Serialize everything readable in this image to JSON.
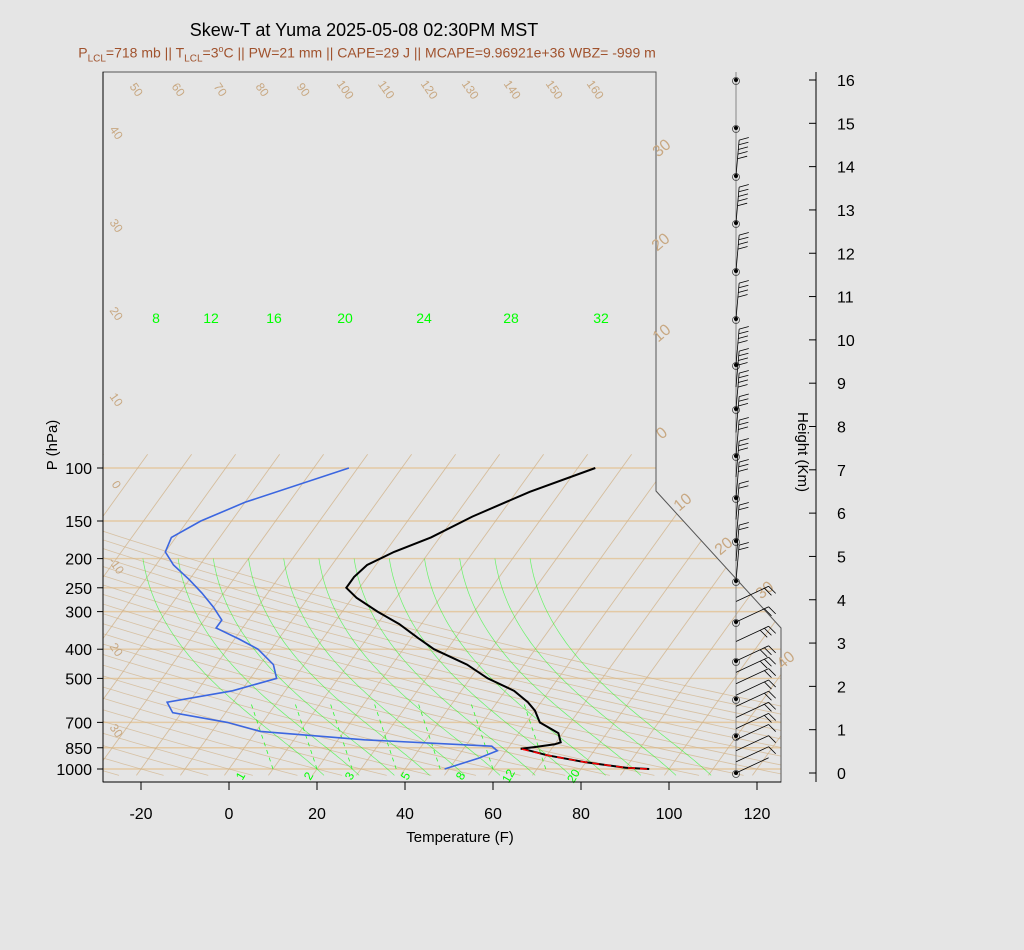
{
  "chart_data": {
    "type": "line",
    "title": "Skew-T at Yuma 2025-05-08 02:30PM MST",
    "subtitle": {
      "p_lcl_label": "P",
      "p_lcl_sub": "LCL",
      "p_lcl_value": "=718 mb || T",
      "t_lcl_sub": "LCL",
      "t_lcl_value": "=3",
      "t_lcl_unit": "o",
      "rest": "C || PW=21 mm || CAPE=29 J || MCAPE=9.96921e+36 WBZ= -999 m"
    },
    "xlabel": "Temperature (F)",
    "ylabel": "P (hPa)",
    "y2label": "Height (Km)",
    "x_ticks": [
      "-20",
      "0",
      "20",
      "40",
      "60",
      "80",
      "100",
      "120"
    ],
    "p_ticks": [
      "100",
      "150",
      "200",
      "250",
      "300",
      "400",
      "500",
      "700",
      "850",
      "1000"
    ],
    "height_ticks": [
      "0",
      "1",
      "2",
      "3",
      "4",
      "5",
      "6",
      "7",
      "8",
      "9",
      "10",
      "11",
      "12",
      "13",
      "14",
      "15",
      "16"
    ],
    "mixing_ratio_labels": [
      "8",
      "12",
      "16",
      "20",
      "24",
      "28",
      "32"
    ],
    "bottom_mixing_labels": [
      "1",
      "2",
      "3",
      "5",
      "8",
      "12",
      "20"
    ],
    "isotherm_labels_top": [
      "50",
      "60",
      "70",
      "80",
      "90",
      "100",
      "110",
      "120",
      "130",
      "140",
      "150",
      "160"
    ],
    "isotherm_labels_left": [
      "40",
      "30",
      "20",
      "10",
      "0",
      "-10",
      "20",
      "30"
    ],
    "isotherm_labels_right": [
      "30",
      "20",
      "10",
      "0",
      "10",
      "20",
      "30",
      "40"
    ],
    "series": [
      {
        "name": "",
        "color": "#000000",
        "points": [
          [
            95.5,
            1000
          ],
          [
            90,
            990
          ],
          [
            80,
            950
          ],
          [
            70,
            900
          ],
          [
            64,
            860
          ],
          [
            63,
            857
          ],
          [
            66,
            845
          ],
          [
            70,
            828
          ],
          [
            71,
            815
          ],
          [
            69,
            760
          ],
          [
            63,
            700
          ],
          [
            60,
            640
          ],
          [
            57,
            600
          ],
          [
            52,
            550
          ],
          [
            44,
            500
          ],
          [
            37,
            450
          ],
          [
            27,
            400
          ],
          [
            22,
            370
          ],
          [
            15,
            330
          ],
          [
            8,
            300
          ],
          [
            1,
            270
          ],
          [
            -3,
            250
          ],
          [
            -3,
            230
          ],
          [
            -2,
            210
          ],
          [
            2,
            190
          ],
          [
            8,
            170
          ],
          [
            14,
            145
          ],
          [
            23,
            120
          ],
          [
            34,
            100
          ]
        ]
      },
      {
        "name": "",
        "color": "#3b66e0",
        "points": [
          [
            49,
            1000
          ],
          [
            55,
            920
          ],
          [
            58,
            870
          ],
          [
            56,
            840
          ],
          [
            26,
            800
          ],
          [
            1,
            750
          ],
          [
            -8,
            700
          ],
          [
            -22,
            650
          ],
          [
            -25,
            600
          ],
          [
            -12,
            550
          ],
          [
            -4,
            500
          ],
          [
            -7,
            450
          ],
          [
            -13,
            400
          ],
          [
            -19,
            370
          ],
          [
            -26,
            340
          ],
          [
            -26,
            320
          ],
          [
            -30,
            290
          ],
          [
            -35,
            260
          ],
          [
            -40,
            235
          ],
          [
            -46,
            210
          ],
          [
            -50,
            190
          ],
          [
            -51,
            170
          ],
          [
            -47,
            150
          ],
          [
            -40,
            130
          ],
          [
            -22,
            100
          ]
        ]
      }
    ],
    "parcel": {
      "name": "",
      "color": "#ff0000",
      "points": [
        [
          95,
          1000
        ],
        [
          90,
          990
        ],
        [
          80,
          950
        ],
        [
          70,
          900
        ],
        [
          63,
          857
        ]
      ]
    },
    "wind_barbs": [
      {
        "height": 0,
        "speed_kt": 0
      },
      {
        "height": 0.3,
        "speed_kt": 5
      },
      {
        "height": 0.6,
        "speed_kt": 10
      },
      {
        "height": 0.9,
        "speed_kt": 10
      },
      {
        "height": 1.2,
        "speed_kt": 15
      },
      {
        "height": 1.5,
        "speed_kt": 15
      },
      {
        "height": 1.8,
        "speed_kt": 20
      },
      {
        "height": 2.1,
        "speed_kt": 20
      },
      {
        "height": 2.4,
        "speed_kt": 20
      },
      {
        "height": 2.7,
        "speed_kt": 25
      },
      {
        "height": 3.0,
        "speed_kt": 25
      },
      {
        "height": 3.5,
        "speed_kt": 25
      },
      {
        "height": 4.0,
        "speed_kt": 20
      },
      {
        "height": 4.5,
        "speed_kt": 15
      },
      {
        "height": 5.0,
        "speed_kt": 15
      },
      {
        "height": 5.5,
        "speed_kt": 20
      },
      {
        "height": 6.0,
        "speed_kt": 20
      },
      {
        "height": 6.5,
        "speed_kt": 20
      },
      {
        "height": 7.0,
        "speed_kt": 25
      },
      {
        "height": 7.5,
        "speed_kt": 25
      },
      {
        "height": 8.0,
        "speed_kt": 30
      },
      {
        "height": 8.5,
        "speed_kt": 30
      },
      {
        "height": 9.0,
        "speed_kt": 35
      },
      {
        "height": 9.5,
        "speed_kt": 35
      },
      {
        "height": 10.0,
        "speed_kt": 40
      },
      {
        "height": 11.0,
        "speed_kt": 40
      },
      {
        "height": 12.0,
        "speed_kt": 40
      },
      {
        "height": 13.0,
        "speed_kt": 45
      },
      {
        "height": 14.0,
        "speed_kt": 45
      }
    ],
    "height_markers": [
      0,
      1,
      2,
      3,
      4,
      5,
      6,
      7,
      8,
      9,
      10,
      11,
      12,
      13,
      14,
      15,
      16
    ],
    "colors": {
      "isotherm": "#d2b48c",
      "mixing_ratio": "#00ff00",
      "frame": "#000000",
      "subtitle": "#a0522d"
    }
  }
}
